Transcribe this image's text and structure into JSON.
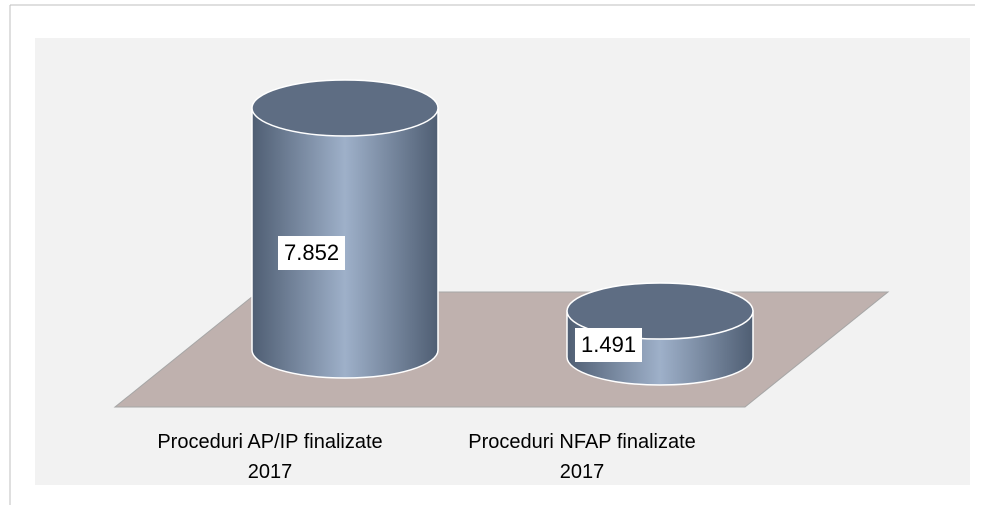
{
  "chart_data": {
    "type": "cylinder",
    "categories": [
      "Proceduri  AP/IP finalizate\n2017",
      "Proceduri NFAP finalizate\n2017"
    ],
    "values": [
      7852,
      1491
    ],
    "value_labels": [
      "7.852",
      "1.491"
    ],
    "color": "#8a9bb4",
    "floor_color": "#bfb1ae"
  }
}
